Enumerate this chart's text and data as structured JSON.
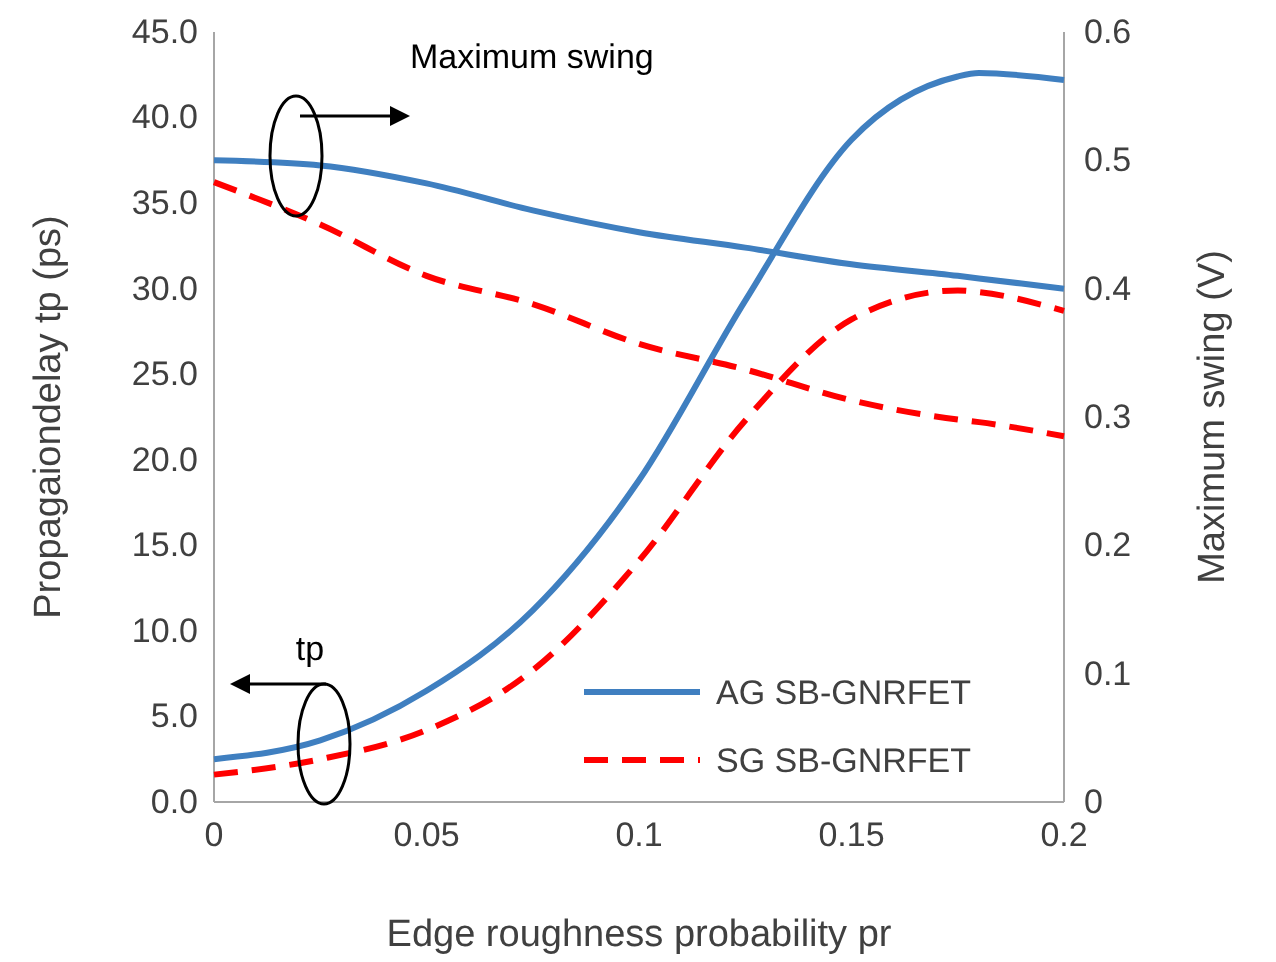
{
  "chart_data": {
    "type": "line",
    "xlabel": "Edge roughness probability pr",
    "ylabel": "Propagaiondelay tp (ps)",
    "y2label": "Maximum swing (V)",
    "x": [
      0,
      0.025,
      0.05,
      0.075,
      0.1,
      0.125,
      0.15,
      0.175,
      0.18,
      0.2
    ],
    "xlim": [
      0,
      0.2
    ],
    "xticks": [
      0,
      0.05,
      0.1,
      0.15,
      0.2
    ],
    "ylim": [
      0,
      45
    ],
    "yticks": [
      {
        "value": 0,
        "label": "0.0"
      },
      {
        "value": 5,
        "label": "5.0"
      },
      {
        "value": 10,
        "label": "10.0"
      },
      {
        "value": 15,
        "label": "15.0"
      },
      {
        "value": 20,
        "label": "20.0"
      },
      {
        "value": 25,
        "label": "25.0"
      },
      {
        "value": 30,
        "label": "30.0"
      },
      {
        "value": 35,
        "label": "35.0"
      },
      {
        "value": 40,
        "label": "40.0"
      },
      {
        "value": 45,
        "label": "45.0"
      }
    ],
    "y2lim": [
      0,
      0.6
    ],
    "y2ticks": [
      0,
      0.1,
      0.2,
      0.3,
      0.4,
      0.5,
      0.6
    ],
    "series": [
      {
        "name": "AG SB-GNRFET",
        "color": "#3f7fc0",
        "line_style": "solid",
        "values": [
          2.5,
          3.6,
          6.5,
          11.2,
          18.8,
          29.3,
          38.7,
          42.4,
          42.6,
          42.2
        ]
      },
      {
        "name": "SG SB-GNRFET",
        "color": "#ff0000",
        "line_style": "dashed",
        "values": [
          1.6,
          2.5,
          4.2,
          7.7,
          14.1,
          22.3,
          28.2,
          29.9,
          29.8,
          28.7
        ]
      },
      {
        "color": "#3f7fc0",
        "line_style": "solid",
        "axis": "y2",
        "values": [
          0.5,
          0.496,
          0.482,
          0.461,
          0.444,
          0.432,
          0.419,
          0.41,
          0.408,
          0.4
        ]
      },
      {
        "color": "#ff0000",
        "line_style": "dashed",
        "axis": "y2",
        "values": [
          0.483,
          0.45,
          0.41,
          0.388,
          0.357,
          0.337,
          0.313,
          0.298,
          0.296,
          0.285
        ]
      }
    ],
    "annotations": [
      "Maximum swing",
      "tp"
    ],
    "legend": "bottom right",
    "grid": false,
    "marker": "none"
  }
}
